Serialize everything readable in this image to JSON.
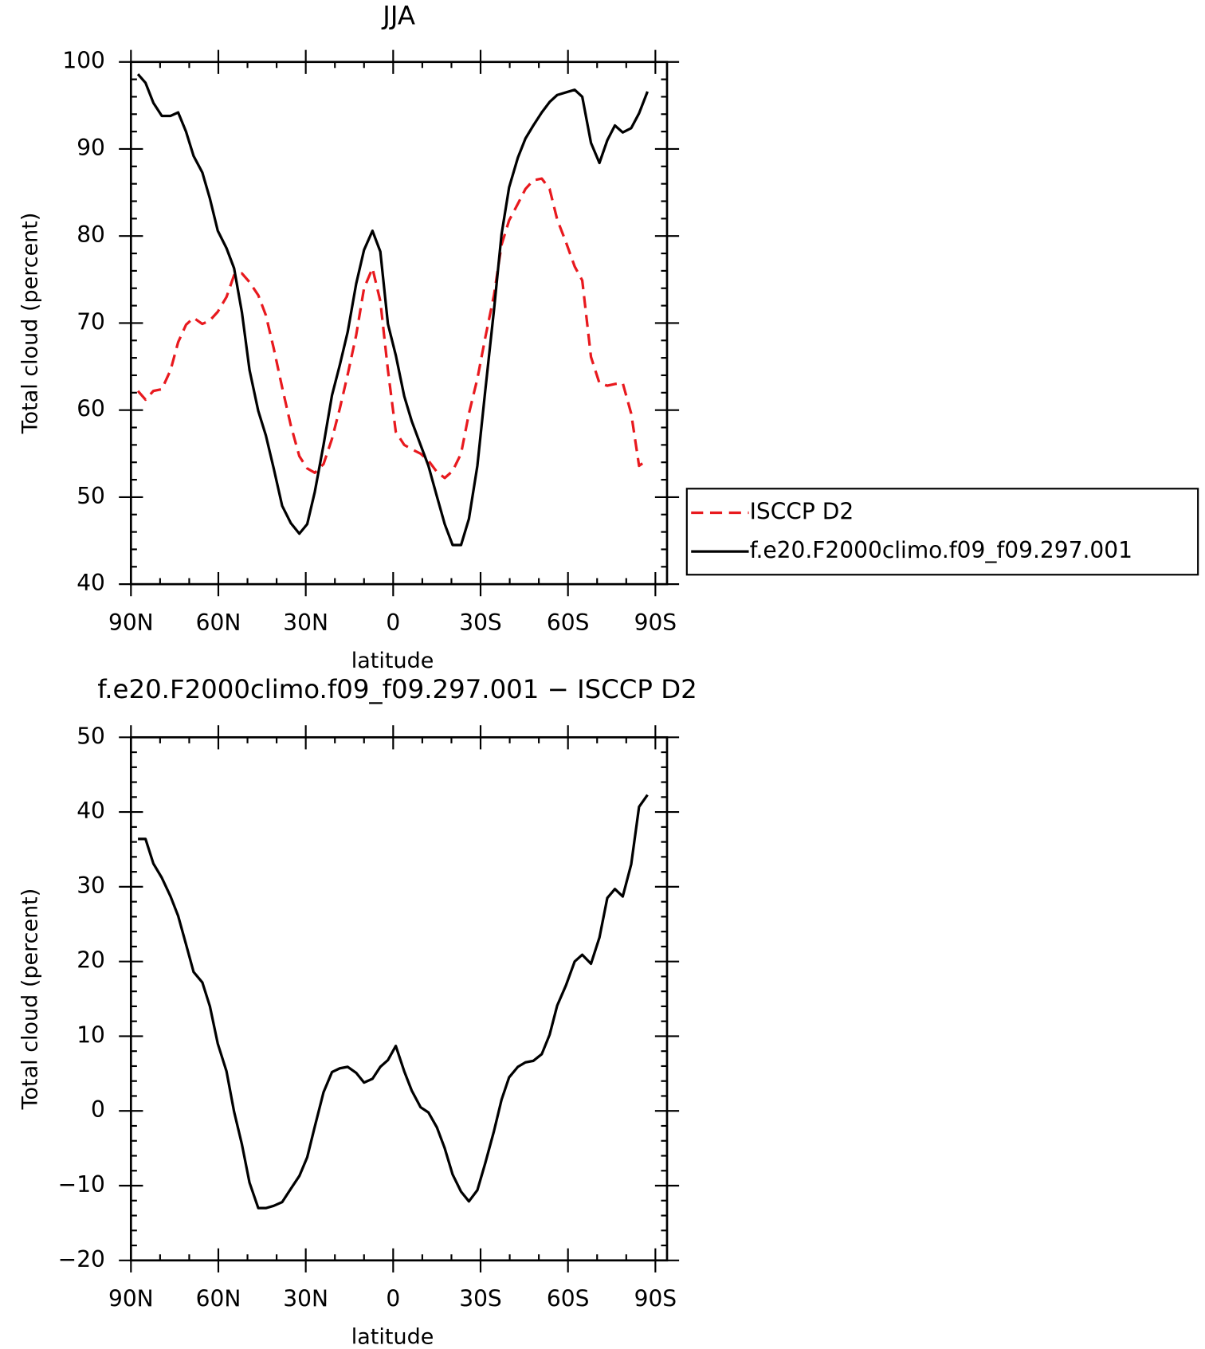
{
  "chart_data": [
    {
      "type": "line",
      "title": "JJA",
      "xlabel": "latitude",
      "ylabel": "Total cloud (percent)",
      "x": [
        87.6,
        85,
        82.3,
        79.4,
        76.4,
        73.8,
        71.1,
        68.5,
        65.5,
        62.9,
        60.2,
        57.2,
        54.6,
        51.9,
        49.3,
        46.3,
        43.7,
        41,
        38.1,
        35.1,
        32.2,
        29.5,
        26.9,
        23.9,
        21,
        18.3,
        15.6,
        12.7,
        10,
        7.1,
        4.4,
        1.8,
        -0.9,
        -3.8,
        -6.4,
        -9.4,
        -12.1,
        -15,
        -17.7,
        -20.4,
        -23.3,
        -26,
        -28.9,
        -31.6,
        -34.6,
        -37.2,
        -39.8,
        -42.8,
        -45.4,
        -48.1,
        -51,
        -53.7,
        -56.3,
        -59.3,
        -62.3,
        -64.9,
        -67.9,
        -70.8,
        -73.5,
        -76.1,
        -78.8,
        -81.7,
        -84.4,
        -87.3
      ],
      "series": [
        {
          "name": "ISCCP D2",
          "color": "#e8191e",
          "dashed": true,
          "values": [
            62.2,
            61.2,
            62.2,
            62.4,
            64.6,
            67.8,
            69.8,
            70.6,
            69.9,
            70.3,
            71.3,
            73,
            75.5,
            75.7,
            74.7,
            73.2,
            70.9,
            67.1,
            62.6,
            58.2,
            54.7,
            53.3,
            52.8,
            53.8,
            56.7,
            60.2,
            64.1,
            68.6,
            74,
            76.3,
            72.5,
            64.6,
            57.5,
            56,
            55.5,
            55,
            54.2,
            52.9,
            52.2,
            53,
            55,
            59.6,
            63.6,
            68.3,
            73.2,
            79,
            81.8,
            83.7,
            85.4,
            86.4,
            86.6,
            85.4,
            81.9,
            79.3,
            76.5,
            74.9,
            66.1,
            63.1,
            62.8,
            63,
            63.1,
            59.6,
            53.6,
            54.3
          ]
        },
        {
          "name": "f.e20.F2000climo.f09_f09.297.001",
          "color": "#000000",
          "dashed": false,
          "values": [
            98.6,
            97.6,
            95.3,
            93.8,
            93.8,
            94.2,
            92,
            89.2,
            87.3,
            84.3,
            80.6,
            78.6,
            76.3,
            71.2,
            64.6,
            59.9,
            57.1,
            53.3,
            49,
            47,
            45.8,
            46.9,
            50.6,
            56,
            61.7,
            65.2,
            69,
            74.5,
            78.4,
            80.6,
            78.2,
            69.9,
            66.3,
            61.6,
            58.7,
            56,
            53.6,
            50.1,
            46.9,
            44.5,
            44.5,
            47.5,
            53.6,
            62.2,
            71.5,
            80.2,
            85.6,
            89,
            91.2,
            92.7,
            94.2,
            95.4,
            96.2,
            96.5,
            96.8,
            96,
            90.7,
            88.4,
            91,
            92.7,
            91.9,
            92.4,
            94.1,
            96.6
          ]
        }
      ],
      "xlim": [
        90,
        -94
      ],
      "xticks": [
        {
          "value": 90,
          "label": "90N"
        },
        {
          "value": 60,
          "label": "60N"
        },
        {
          "value": 30,
          "label": "30N"
        },
        0,
        {
          "value": -30,
          "label": "30S"
        },
        {
          "value": -60,
          "label": "60S"
        },
        {
          "value": -90,
          "label": "90S"
        }
      ],
      "ylim": [
        40,
        100
      ],
      "yticks": [
        40,
        50,
        60,
        70,
        80,
        90,
        100
      ],
      "legend": "right"
    },
    {
      "type": "line",
      "title": "f.e20.F2000climo.f09_f09.297.001 − ISCCP D2",
      "xlabel": "latitude",
      "ylabel": "Total cloud (percent)",
      "x": [
        87.6,
        85,
        82.3,
        79.4,
        76.4,
        73.8,
        71.1,
        68.5,
        65.5,
        62.9,
        60.2,
        57.2,
        54.6,
        51.9,
        49.3,
        46.3,
        43.7,
        41,
        38.1,
        35.1,
        32.2,
        29.5,
        26.9,
        23.9,
        21,
        18.3,
        15.6,
        12.7,
        10,
        7.1,
        4.4,
        1.8,
        -0.9,
        -3.8,
        -6.4,
        -9.4,
        -12.1,
        -15,
        -17.7,
        -20.4,
        -23.3,
        -26,
        -28.9,
        -31.6,
        -34.6,
        -37.2,
        -39.8,
        -42.8,
        -45.4,
        -48.1,
        -51,
        -53.7,
        -56.3,
        -59.3,
        -62.3,
        -64.9,
        -67.9,
        -70.8,
        -73.5,
        -76.1,
        -78.8,
        -81.7,
        -84.4,
        -87.3
      ],
      "series": [
        {
          "color": "#000000",
          "dashed": false,
          "values": [
            36.4,
            36.4,
            33.1,
            31.2,
            28.7,
            26.1,
            22.3,
            18.6,
            17.2,
            14,
            9,
            5.3,
            -0.1,
            -4.5,
            -9.6,
            -13,
            -13,
            -12.7,
            -12.2,
            -10.4,
            -8.7,
            -6.2,
            -2.1,
            2.5,
            5.2,
            5.7,
            5.9,
            5.1,
            3.8,
            4.3,
            5.9,
            6.8,
            8.7,
            5.3,
            2.7,
            0.5,
            -0.2,
            -2.2,
            -5,
            -8.5,
            -10.8,
            -12.1,
            -10.6,
            -7,
            -2.7,
            1.5,
            4.5,
            5.9,
            6.5,
            6.7,
            7.6,
            10.2,
            14.1,
            16.8,
            20,
            20.9,
            19.7,
            23.2,
            28.5,
            29.7,
            28.7,
            33,
            40.7,
            42.3
          ]
        }
      ],
      "xlim": [
        90,
        -94
      ],
      "xticks": [
        {
          "value": 90,
          "label": "90N"
        },
        {
          "value": 60,
          "label": "60N"
        },
        {
          "value": 30,
          "label": "30N"
        },
        0,
        {
          "value": -30,
          "label": "30S"
        },
        {
          "value": -60,
          "label": "60S"
        },
        {
          "value": -90,
          "label": "90S"
        }
      ],
      "ylim": [
        -20,
        50
      ],
      "yticks": [
        {
          "value": -20,
          "label": "−20"
        },
        {
          "value": -10,
          "label": "−10"
        },
        0,
        10,
        20,
        30,
        40,
        50
      ]
    }
  ]
}
